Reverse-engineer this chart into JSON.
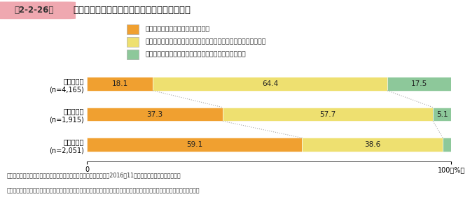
{
  "title_box_text": "第2-2-26図",
  "title_main": "組織形態別に見た、社内の重要な意思決定状況",
  "categories": [
    "中規模法人\n(n=4,165)",
    "小規模法人\n(n=1,915)",
    "個人事業者\n(n=2,051)"
  ],
  "legend_labels": [
    "経営者が一人で意思決定をしている",
    "役員や幹部従業員に都度相談しながら経営者が意思決定をしている",
    "役員や幹部従業員との会議の決議で意思決定をしている"
  ],
  "data": [
    [
      18.1,
      64.4,
      17.5
    ],
    [
      37.3,
      57.7,
      5.1
    ],
    [
      59.1,
      38.6,
      2.3
    ]
  ],
  "colors": [
    "#F0A030",
    "#EEE070",
    "#8DC89A"
  ],
  "bar_height": 0.45,
  "footnote1": "資料：中小企業庁委託「企業経営の継続に関するアンケート調査」（2016年11月、（株）東京商工リサーチ）",
  "footnote2": "（注）「中規模法人」は中規模法人向け調査を集計、「小規模法人」、「個人事業者」は小規模事業者向け調査を集計している。",
  "header_bg": "#EFA8B0",
  "dotted_line_color": "#AAAAAA",
  "bg_color": "#FFFFFF"
}
